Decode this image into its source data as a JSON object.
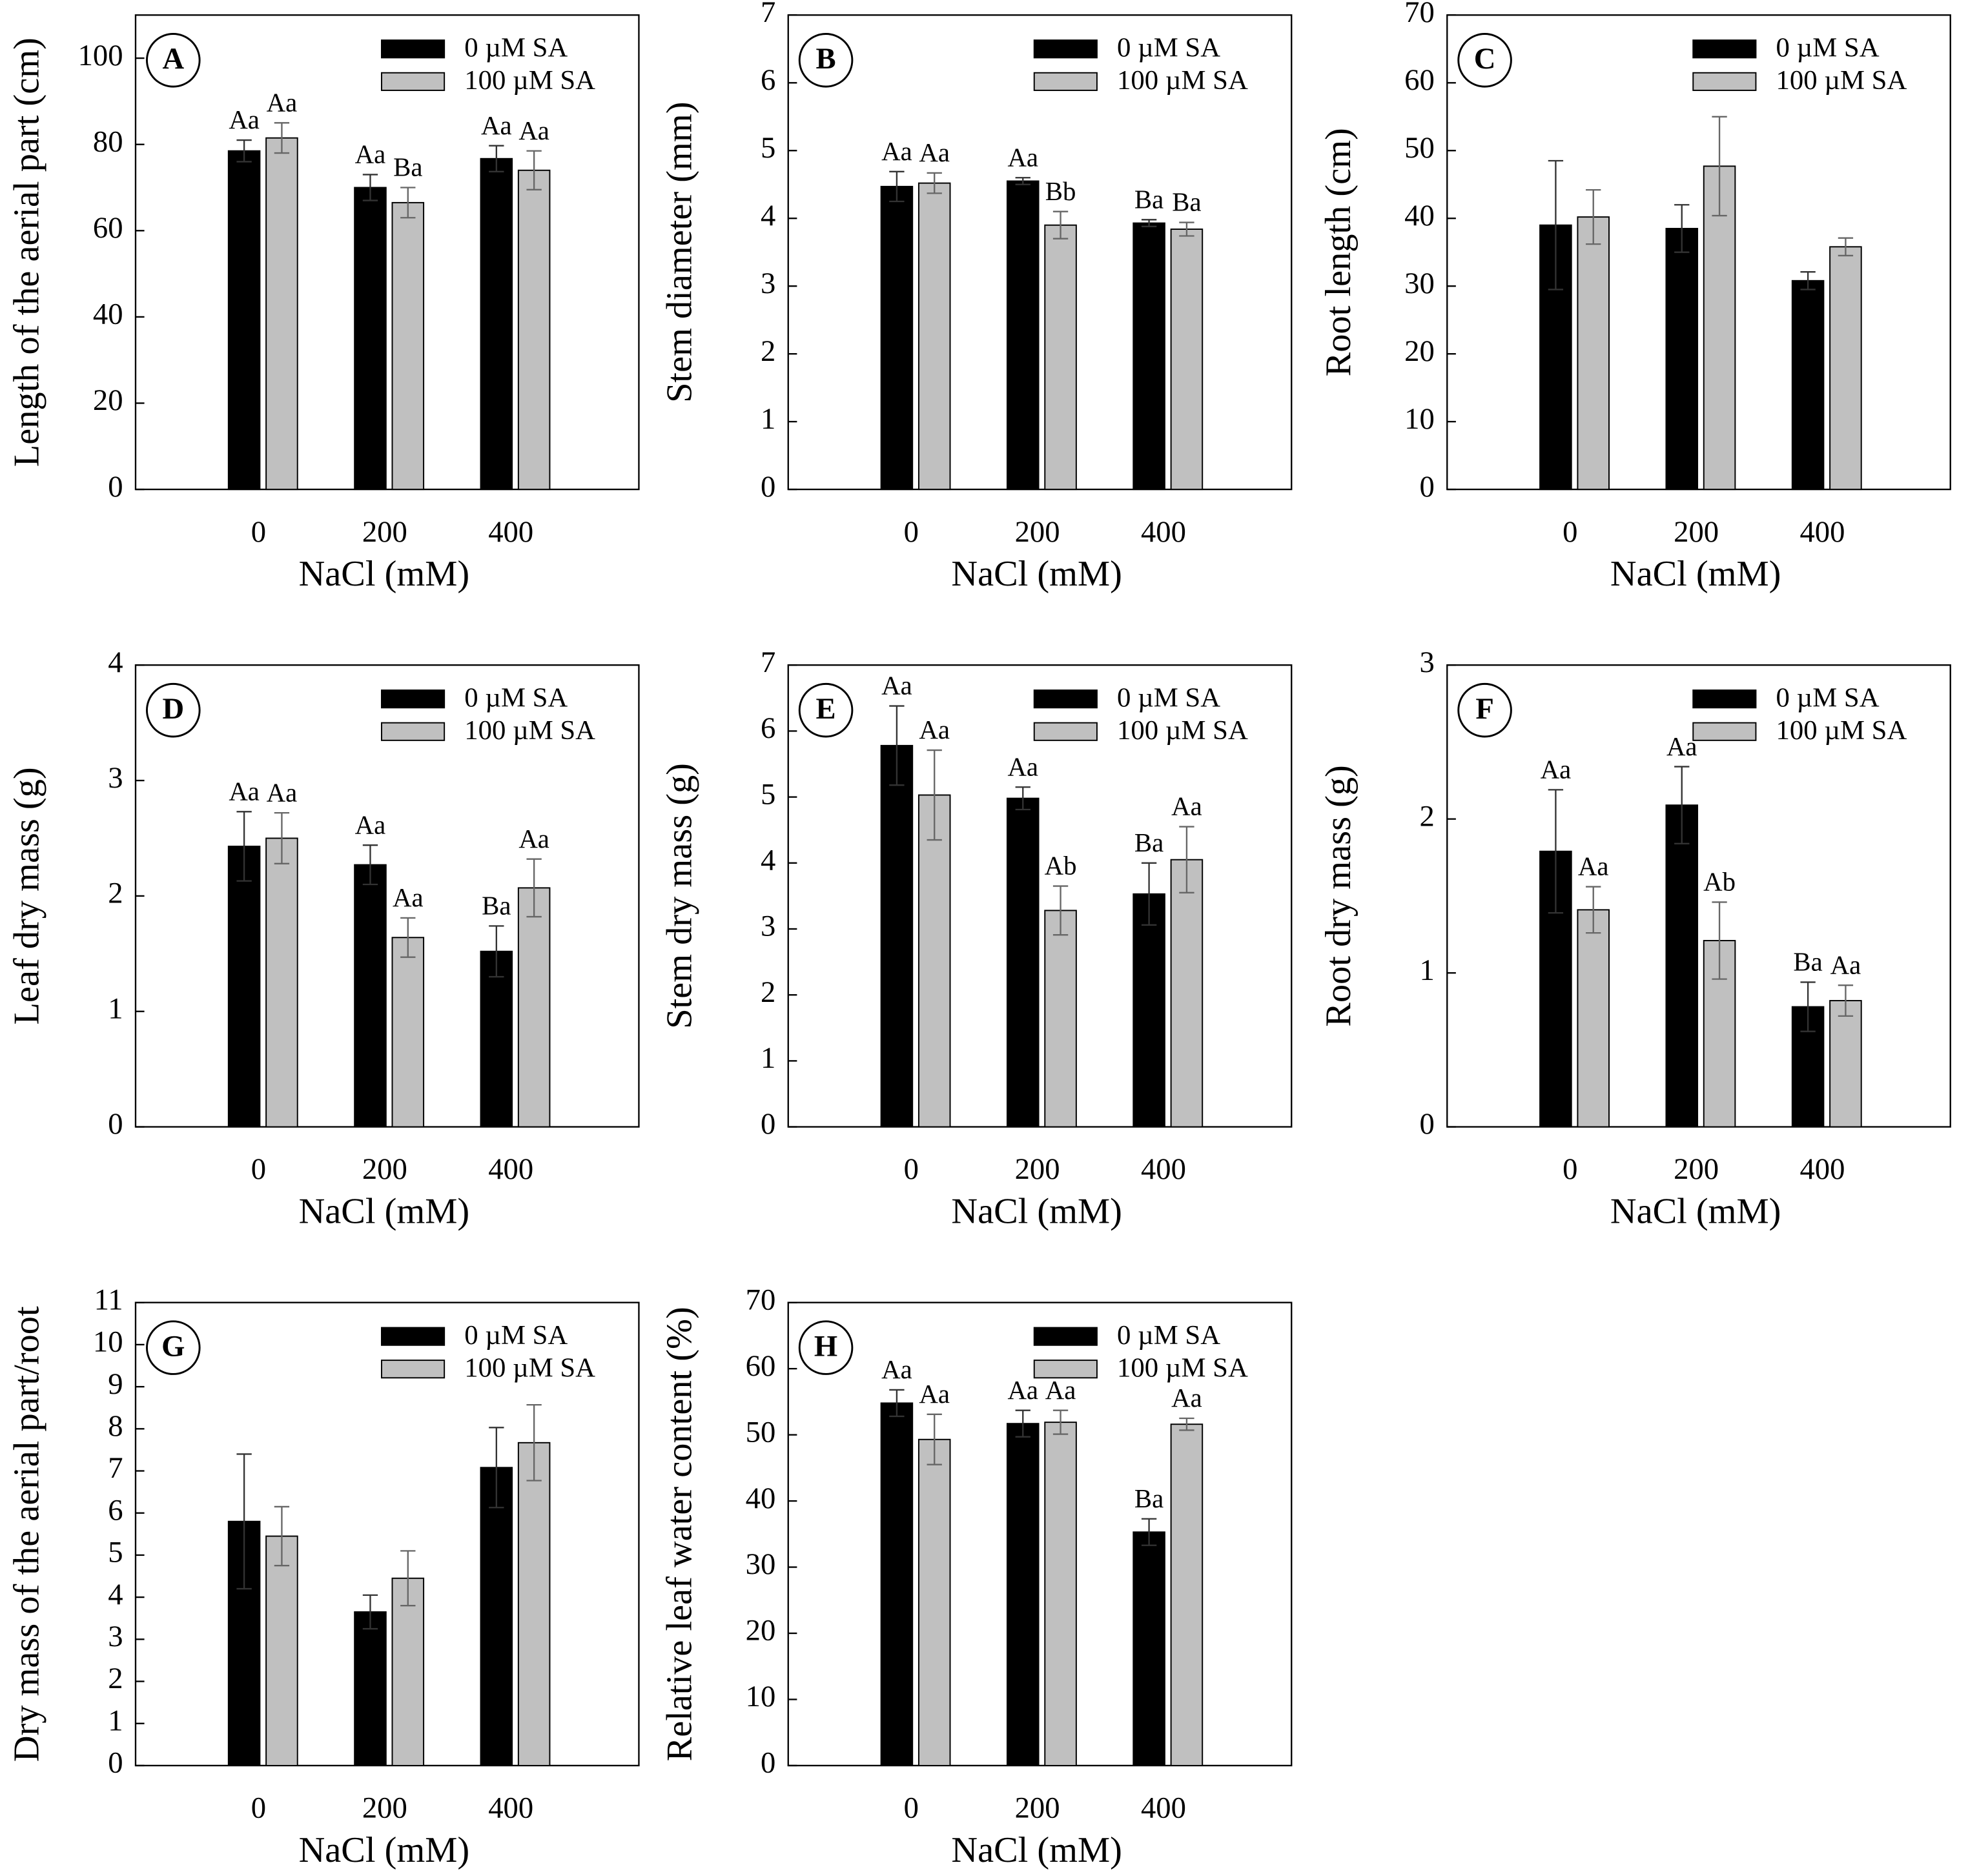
{
  "chart_data": [
    {
      "type": "bar",
      "panel": "A",
      "ylabel": "Length of the aerial part (cm)",
      "xlabel": "NaCl (mM)",
      "categories": [
        "0",
        "200",
        "400"
      ],
      "series": [
        {
          "name": "0 µM SA",
          "color": "#000000",
          "values": [
            78.5,
            70,
            76.7
          ],
          "errors": [
            2.5,
            3,
            3
          ],
          "letters": [
            "Aa",
            "Aa",
            "Aa"
          ]
        },
        {
          "name": "100 µM SA",
          "color": "#c0c0c0",
          "values": [
            81.5,
            66.5,
            74
          ],
          "errors": [
            3.5,
            3.5,
            4.5
          ],
          "letters": [
            "Aa",
            "Ba",
            "Aa"
          ]
        }
      ],
      "ylim": [
        0,
        110
      ],
      "yticks": [
        0,
        20,
        40,
        60,
        80,
        100
      ]
    },
    {
      "type": "bar",
      "panel": "B",
      "ylabel": "Stem diameter  (mm)",
      "xlabel": "NaCl (mM)",
      "categories": [
        "0",
        "200",
        "400"
      ],
      "series": [
        {
          "name": "0 µM SA",
          "color": "#000000",
          "values": [
            4.47,
            4.55,
            3.93
          ],
          "errors": [
            0.22,
            0.05,
            0.05
          ],
          "letters": [
            "Aa",
            "Aa",
            "Ba"
          ]
        },
        {
          "name": "100 µM SA",
          "color": "#c0c0c0",
          "values": [
            4.52,
            3.9,
            3.84
          ],
          "errors": [
            0.15,
            0.2,
            0.1
          ],
          "letters": [
            "Aa",
            "Bb",
            "Ba"
          ]
        }
      ],
      "ylim": [
        0,
        7
      ],
      "yticks": [
        0,
        1,
        2,
        3,
        4,
        5,
        6,
        7
      ]
    },
    {
      "type": "bar",
      "panel": "C",
      "ylabel": "Root length (cm)",
      "xlabel": "NaCl (mM)",
      "categories": [
        "0",
        "200",
        "400"
      ],
      "series": [
        {
          "name": "0 µM SA",
          "color": "#000000",
          "values": [
            39,
            38.5,
            30.8
          ],
          "errors": [
            9.5,
            3.5,
            1.3
          ]
        },
        {
          "name": "100 µM SA",
          "color": "#c0c0c0",
          "values": [
            40.2,
            47.7,
            35.8
          ],
          "errors": [
            4,
            7.3,
            1.3
          ]
        }
      ],
      "ylim": [
        0,
        70
      ],
      "yticks": [
        0,
        10,
        20,
        30,
        40,
        50,
        60,
        70
      ]
    },
    {
      "type": "bar",
      "panel": "D",
      "ylabel": "Leaf dry mass  (g)",
      "xlabel": "NaCl (mM)",
      "categories": [
        "0",
        "200",
        "400"
      ],
      "series": [
        {
          "name": "0 µM SA",
          "color": "#000000",
          "values": [
            2.43,
            2.27,
            1.52
          ],
          "errors": [
            0.3,
            0.17,
            0.22
          ],
          "letters": [
            "Aa",
            "Aa",
            "Ba"
          ]
        },
        {
          "name": "100 µM SA",
          "color": "#c0c0c0",
          "values": [
            2.5,
            1.64,
            2.07
          ],
          "errors": [
            0.22,
            0.17,
            0.25
          ],
          "letters": [
            "Aa",
            "Aa",
            "Aa"
          ]
        }
      ],
      "ylim": [
        0,
        4
      ],
      "yticks": [
        0,
        1,
        2,
        3,
        4
      ]
    },
    {
      "type": "bar",
      "panel": "E",
      "ylabel": "Stem dry mass (g)",
      "xlabel": "NaCl (mM)",
      "categories": [
        "0",
        "200",
        "400"
      ],
      "series": [
        {
          "name": "0 µM SA",
          "color": "#000000",
          "values": [
            5.78,
            4.98,
            3.53
          ],
          "errors": [
            0.6,
            0.17,
            0.47
          ],
          "letters": [
            "Aa",
            "Aa",
            "Ba"
          ]
        },
        {
          "name": "100 µM SA",
          "color": "#c0c0c0",
          "values": [
            5.03,
            3.28,
            4.05
          ],
          "errors": [
            0.68,
            0.37,
            0.5
          ],
          "letters": [
            "Aa",
            "Ab",
            "Aa"
          ]
        }
      ],
      "ylim": [
        0,
        7
      ],
      "yticks": [
        0,
        1,
        2,
        3,
        4,
        5,
        6,
        7
      ]
    },
    {
      "type": "bar",
      "panel": "F",
      "ylabel": "Root dry mass (g)",
      "xlabel": "NaCl (mM)",
      "categories": [
        "0",
        "200",
        "400"
      ],
      "series": [
        {
          "name": "0 µM SA",
          "color": "#000000",
          "values": [
            1.79,
            2.09,
            0.78
          ],
          "errors": [
            0.4,
            0.25,
            0.16
          ],
          "letters": [
            "Aa",
            "Aa",
            "Ba"
          ]
        },
        {
          "name": "100 µM SA",
          "color": "#c0c0c0",
          "values": [
            1.41,
            1.21,
            0.82
          ],
          "errors": [
            0.15,
            0.25,
            0.1
          ],
          "letters": [
            "Aa",
            "Ab",
            "Aa"
          ]
        }
      ],
      "ylim": [
        0,
        3
      ],
      "yticks": [
        0,
        1,
        2,
        3
      ]
    },
    {
      "type": "bar",
      "panel": "G",
      "ylabel": "Dry mass of the aerial part/root",
      "xlabel": "NaCl (mM)",
      "categories": [
        "0",
        "200",
        "400"
      ],
      "series": [
        {
          "name": "0 µM SA",
          "color": "#000000",
          "values": [
            5.8,
            3.65,
            7.08
          ],
          "errors": [
            1.6,
            0.4,
            0.95
          ]
        },
        {
          "name": "100 µM SA",
          "color": "#c0c0c0",
          "values": [
            5.45,
            4.45,
            7.67
          ],
          "errors": [
            0.7,
            0.65,
            0.9
          ]
        }
      ],
      "ylim": [
        0,
        11
      ],
      "yticks": [
        0,
        1,
        2,
        3,
        4,
        5,
        6,
        7,
        8,
        9,
        10,
        11
      ]
    },
    {
      "type": "bar",
      "panel": "H",
      "ylabel": "Relative leaf water content (%)",
      "xlabel": "NaCl (mM)",
      "categories": [
        "0",
        "200",
        "400"
      ],
      "series": [
        {
          "name": "0 µM SA",
          "color": "#000000",
          "values": [
            54.8,
            51.7,
            35.3
          ],
          "errors": [
            2,
            2,
            2
          ],
          "letters": [
            "Aa",
            "Aa",
            "Ba"
          ]
        },
        {
          "name": "100 µM SA",
          "color": "#c0c0c0",
          "values": [
            49.3,
            51.9,
            51.6
          ],
          "errors": [
            3.8,
            1.8,
            0.9
          ],
          "letters": [
            "Aa",
            "Aa",
            "Aa"
          ]
        }
      ],
      "ylim": [
        0,
        70
      ],
      "yticks": [
        0,
        10,
        20,
        30,
        40,
        50,
        60,
        70
      ]
    }
  ]
}
